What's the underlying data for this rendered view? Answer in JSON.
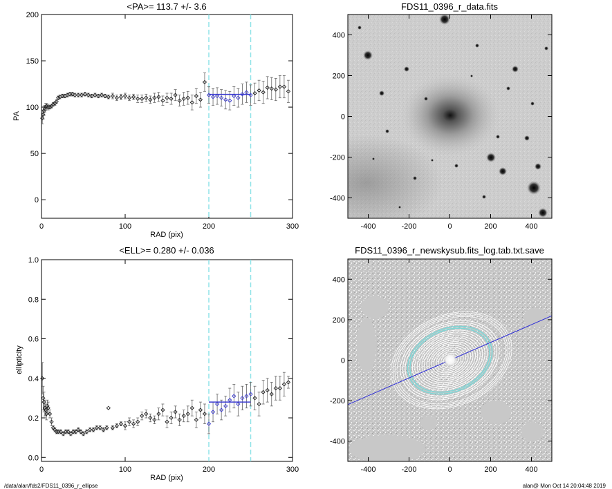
{
  "footer": {
    "left": "/data/alan/fds2/FDS11_0396_r_ellipse",
    "right": "alan@  Mon Oct 14 20:04:48 2019"
  },
  "colors": {
    "data_points": "#222222",
    "fit_line": "#3b3bd0",
    "marker_lines": "#8fe3e8",
    "axis": "#000000",
    "image_background": "#c8c8c8",
    "contour": "#ffffff",
    "contour_highlight": "#7fd6d6",
    "major_axis_line": "#2a2ad8"
  },
  "chart_data": [
    {
      "id": "pa",
      "type": "scatter",
      "title": "<PA>= 113.7 +/-   3.6",
      "xlabel": "RAD (pix)",
      "ylabel": "PA",
      "xlim": [
        0,
        300
      ],
      "ylim": [
        -20,
        200
      ],
      "xticks": [
        0,
        100,
        200,
        300
      ],
      "yticks": [
        0,
        50,
        100,
        150,
        200
      ],
      "vlines": [
        200,
        250
      ],
      "mean_line": {
        "value": 113.7,
        "x_range": [
          200,
          250
        ]
      },
      "series": [
        {
          "x": [
            1,
            2,
            3,
            4,
            5,
            6,
            8,
            10,
            12,
            14,
            16,
            18,
            20,
            22,
            25,
            28,
            31,
            34,
            37,
            40,
            44,
            48,
            52,
            56,
            60,
            64,
            68,
            72,
            76,
            80,
            85,
            90,
            95,
            100,
            105,
            110,
            115,
            120,
            125,
            130,
            135,
            140,
            145,
            150,
            155,
            160,
            165,
            170,
            175,
            180,
            185,
            190,
            195,
            200,
            205,
            210,
            215,
            220,
            225,
            230,
            235,
            240,
            245,
            250,
            255,
            260,
            265,
            270,
            275,
            280,
            285,
            290,
            295
          ],
          "y": [
            88,
            92,
            96,
            98,
            100,
            101,
            100,
            100,
            101,
            103,
            104,
            106,
            110,
            111,
            112,
            112,
            113,
            114,
            114,
            113,
            113,
            113,
            114,
            113,
            112,
            113,
            112,
            113,
            112,
            111,
            112,
            110,
            111,
            112,
            110,
            111,
            109,
            109,
            110,
            108,
            110,
            111,
            107,
            110,
            109,
            113,
            107,
            109,
            110,
            105,
            112,
            108,
            127,
            113,
            111,
            112,
            110,
            108,
            107,
            112,
            110,
            114,
            116,
            113,
            115,
            118,
            116,
            121,
            120,
            119,
            122,
            122,
            117
          ],
          "err": [
            6,
            5,
            5,
            4,
            4,
            3,
            3,
            2,
            2,
            2,
            2,
            2,
            2,
            2,
            2,
            2,
            2,
            2,
            2,
            2,
            2,
            2,
            2,
            2,
            2,
            2,
            2,
            2,
            2,
            2,
            3,
            3,
            3,
            3,
            3,
            3,
            4,
            4,
            4,
            4,
            5,
            5,
            5,
            5,
            6,
            6,
            6,
            7,
            7,
            8,
            8,
            8,
            10,
            9,
            9,
            9,
            9,
            10,
            10,
            10,
            10,
            11,
            11,
            11,
            11,
            11,
            12,
            12,
            12,
            12,
            12,
            12,
            12
          ]
        }
      ]
    },
    {
      "id": "ell",
      "type": "scatter",
      "title": "<ELL>= 0.280 +/-  0.036",
      "xlabel": "RAD (pix)",
      "ylabel": "ellipticity",
      "xlim": [
        0,
        300
      ],
      "ylim": [
        -0.02,
        1.0
      ],
      "xticks": [
        0,
        100,
        200,
        300
      ],
      "yticks": [
        0.0,
        0.2,
        0.4,
        0.6,
        0.8,
        1.0
      ],
      "ytick_labels": [
        "0.0",
        "0.2",
        "0.4",
        "0.6",
        "0.8",
        "1.0"
      ],
      "vlines": [
        200,
        250
      ],
      "mean_line": {
        "value": 0.28,
        "x_range": [
          200,
          250
        ]
      },
      "series": [
        {
          "x": [
            1,
            2,
            3,
            4,
            5,
            6,
            7,
            8,
            10,
            12,
            14,
            16,
            18,
            20,
            23,
            26,
            29,
            32,
            35,
            38,
            41,
            44,
            47,
            50,
            54,
            58,
            62,
            66,
            70,
            74,
            78,
            80,
            85,
            90,
            95,
            100,
            105,
            110,
            115,
            120,
            125,
            130,
            135,
            140,
            145,
            150,
            155,
            160,
            165,
            170,
            175,
            180,
            185,
            190,
            195,
            200,
            205,
            210,
            215,
            220,
            225,
            230,
            235,
            240,
            245,
            250,
            255,
            260,
            265,
            270,
            275,
            280,
            285,
            290,
            295
          ],
          "y": [
            0.4,
            0.3,
            0.28,
            0.25,
            0.24,
            0.22,
            0.26,
            0.25,
            0.22,
            0.18,
            0.15,
            0.14,
            0.13,
            0.13,
            0.13,
            0.12,
            0.13,
            0.13,
            0.12,
            0.13,
            0.13,
            0.14,
            0.13,
            0.12,
            0.13,
            0.14,
            0.14,
            0.15,
            0.15,
            0.14,
            0.15,
            0.25,
            0.15,
            0.16,
            0.17,
            0.16,
            0.18,
            0.17,
            0.18,
            0.21,
            0.22,
            0.2,
            0.19,
            0.22,
            0.24,
            0.18,
            0.2,
            0.23,
            0.19,
            0.21,
            0.22,
            0.25,
            0.19,
            0.24,
            0.22,
            0.17,
            0.23,
            0.27,
            0.24,
            0.26,
            0.29,
            0.31,
            0.27,
            0.3,
            0.31,
            0.32,
            0.3,
            0.27,
            0.33,
            0.34,
            0.32,
            0.35,
            0.35,
            0.37,
            0.38
          ],
          "err": [
            0.08,
            0.06,
            0.05,
            0.04,
            0.03,
            0.03,
            0.03,
            0.03,
            0.02,
            0.02,
            0.01,
            0.01,
            0.01,
            0.01,
            0.01,
            0.01,
            0.01,
            0.01,
            0.01,
            0.01,
            0.01,
            0.01,
            0.01,
            0.01,
            0.01,
            0.01,
            0.01,
            0.01,
            0.01,
            0.01,
            0.01,
            0.0,
            0.01,
            0.01,
            0.01,
            0.02,
            0.02,
            0.02,
            0.02,
            0.02,
            0.02,
            0.02,
            0.02,
            0.03,
            0.03,
            0.03,
            0.03,
            0.03,
            0.03,
            0.03,
            0.04,
            0.04,
            0.04,
            0.04,
            0.05,
            0.05,
            0.05,
            0.05,
            0.05,
            0.05,
            0.06,
            0.06,
            0.06,
            0.06,
            0.06,
            0.06,
            0.06,
            0.06,
            0.06,
            0.06,
            0.06,
            0.06,
            0.06,
            0.06,
            0.03
          ]
        }
      ]
    },
    {
      "id": "img1",
      "type": "image",
      "title": "FDS11_0396_r_data.fits",
      "xlim": [
        -500,
        500
      ],
      "ylim": [
        -500,
        500
      ],
      "xticks": [
        -400,
        -200,
        0,
        200,
        400
      ],
      "yticks": [
        -400,
        -200,
        0,
        200,
        400
      ]
    },
    {
      "id": "img2",
      "type": "image",
      "title": "FDS11_0396_r_newskysub.fits_log.tab.txt.save",
      "xlim": [
        -500,
        500
      ],
      "ylim": [
        -500,
        500
      ],
      "xticks": [
        -400,
        -200,
        0,
        200,
        400
      ],
      "yticks": [
        -400,
        -200,
        0,
        200,
        400
      ],
      "position_angle_deg": 113.7,
      "ellipticity": 0.28
    }
  ]
}
